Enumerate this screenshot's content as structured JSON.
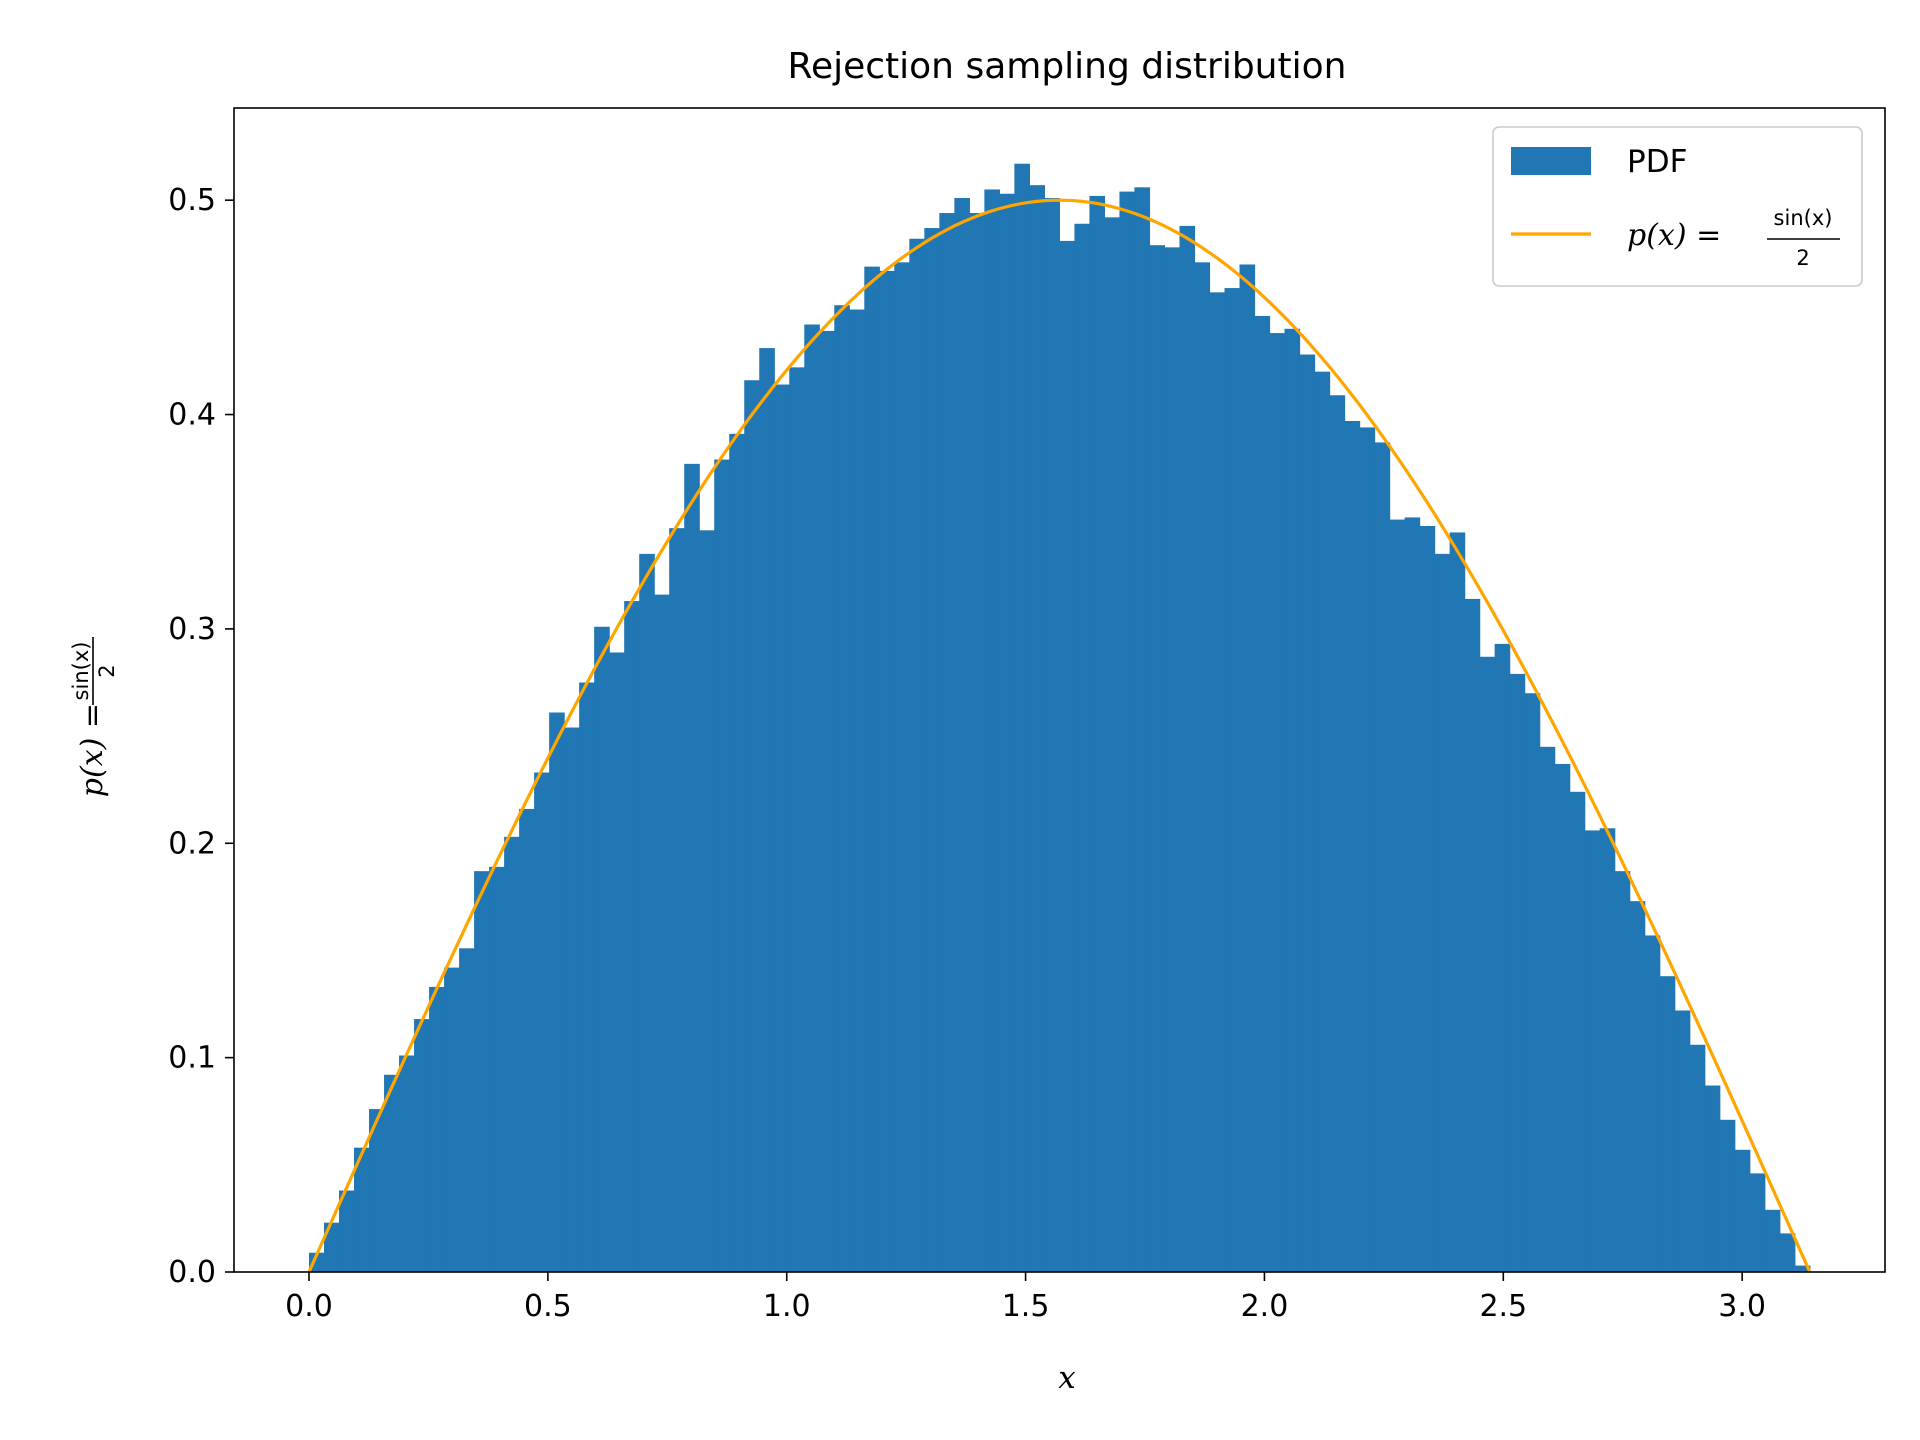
{
  "chart_data": {
    "type": "bar",
    "title": "Rejection sampling distribution",
    "xlabel": "x",
    "ylabel": {
      "lhs": "p(x) =",
      "num": "sin(x)",
      "den": "2"
    },
    "xlim": [
      -0.157,
      3.299
    ],
    "ylim": [
      0,
      0.543
    ],
    "xticks": [
      "0.0",
      "0.5",
      "1.0",
      "1.5",
      "2.0",
      "2.5",
      "3.0"
    ],
    "yticks": [
      "0.0",
      "0.1",
      "0.2",
      "0.3",
      "0.4",
      "0.5"
    ],
    "grid": false,
    "legend_position": "top-right",
    "series": [
      {
        "name": "PDF",
        "kind": "histogram",
        "color": "#2077b4",
        "bins": 100,
        "bin_range": [
          0,
          3.14159
        ],
        "values": [
          0.009,
          0.023,
          0.038,
          0.058,
          0.076,
          0.092,
          0.101,
          0.118,
          0.133,
          0.142,
          0.151,
          0.187,
          0.189,
          0.203,
          0.216,
          0.233,
          0.261,
          0.254,
          0.275,
          0.301,
          0.289,
          0.313,
          0.335,
          0.316,
          0.347,
          0.377,
          0.346,
          0.379,
          0.391,
          0.416,
          0.431,
          0.414,
          0.422,
          0.442,
          0.439,
          0.451,
          0.449,
          0.469,
          0.467,
          0.471,
          0.482,
          0.487,
          0.494,
          0.501,
          0.494,
          0.505,
          0.503,
          0.517,
          0.507,
          0.501,
          0.481,
          0.489,
          0.502,
          0.492,
          0.504,
          0.506,
          0.479,
          0.478,
          0.488,
          0.471,
          0.457,
          0.459,
          0.47,
          0.446,
          0.438,
          0.44,
          0.428,
          0.42,
          0.409,
          0.397,
          0.394,
          0.387,
          0.351,
          0.352,
          0.348,
          0.335,
          0.345,
          0.314,
          0.287,
          0.293,
          0.279,
          0.27,
          0.245,
          0.237,
          0.224,
          0.206,
          0.207,
          0.187,
          0.173,
          0.157,
          0.138,
          0.122,
          0.106,
          0.087,
          0.071,
          0.057,
          0.046,
          0.029,
          0.018,
          0.003
        ]
      },
      {
        "name": {
          "lhs": "p(x) =",
          "num": "sin(x)",
          "den": "2"
        },
        "kind": "line",
        "color": "#ffa500",
        "function": "sin(x)/2",
        "x_range": [
          0,
          3.14159
        ]
      }
    ]
  }
}
